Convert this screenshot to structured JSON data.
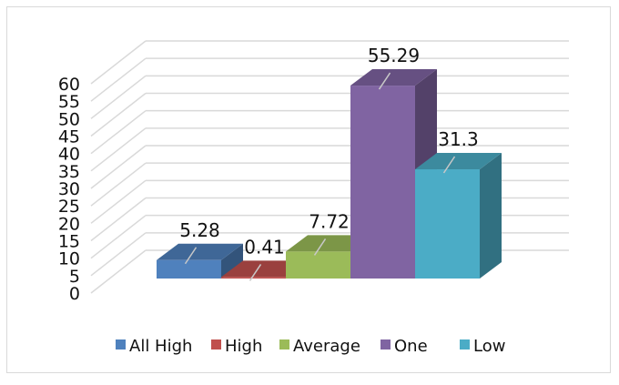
{
  "chart_data": {
    "type": "bar",
    "title": "",
    "xlabel": "",
    "ylabel": "",
    "ylim": [
      0,
      60
    ],
    "yticks": [
      0,
      5,
      10,
      15,
      20,
      25,
      30,
      35,
      40,
      45,
      50,
      55,
      60
    ],
    "grid": true,
    "legend_position": "bottom",
    "style": "3d-column",
    "series": [
      {
        "name": "All High",
        "value": 5.28,
        "label": "5.28",
        "color": "#4f81bd"
      },
      {
        "name": "High",
        "value": 0.41,
        "label": "0.41",
        "color": "#c0504d"
      },
      {
        "name": "Average",
        "value": 7.72,
        "label": "7.72",
        "color": "#9bbb59"
      },
      {
        "name": "One",
        "value": 55.29,
        "label": "55.29",
        "color": "#8064a2"
      },
      {
        "name": "Low",
        "value": 31.3,
        "label": "31.3",
        "color": "#4bacc6"
      }
    ]
  }
}
